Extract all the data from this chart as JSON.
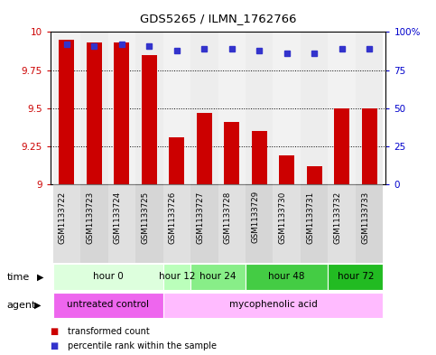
{
  "title": "GDS5265 / ILMN_1762766",
  "samples": [
    "GSM1133722",
    "GSM1133723",
    "GSM1133724",
    "GSM1133725",
    "GSM1133726",
    "GSM1133727",
    "GSM1133728",
    "GSM1133729",
    "GSM1133730",
    "GSM1133731",
    "GSM1133732",
    "GSM1133733"
  ],
  "bar_values": [
    9.95,
    9.93,
    9.93,
    9.85,
    9.31,
    9.47,
    9.41,
    9.35,
    9.19,
    9.12,
    9.5,
    9.5
  ],
  "dot_values": [
    92,
    91,
    92,
    91,
    88,
    89,
    89,
    88,
    86,
    86,
    89,
    89
  ],
  "bar_color": "#cc0000",
  "dot_color": "#3333cc",
  "ylim_left": [
    9.0,
    10.0
  ],
  "ylim_right": [
    0,
    100
  ],
  "yticks_left": [
    9.0,
    9.25,
    9.5,
    9.75,
    10.0
  ],
  "yticks_right": [
    0,
    25,
    50,
    75,
    100
  ],
  "ytick_labels_left": [
    "9",
    "9.25",
    "9.5",
    "9.75",
    "10"
  ],
  "ytick_labels_right": [
    "0",
    "25",
    "50",
    "75",
    "100%"
  ],
  "time_groups": [
    {
      "label": "hour 0",
      "start": 0,
      "end": 3,
      "color": "#ddffdd"
    },
    {
      "label": "hour 12",
      "start": 4,
      "end": 4,
      "color": "#bbffbb"
    },
    {
      "label": "hour 24",
      "start": 5,
      "end": 6,
      "color": "#88ee88"
    },
    {
      "label": "hour 48",
      "start": 7,
      "end": 9,
      "color": "#44cc44"
    },
    {
      "label": "hour 72",
      "start": 10,
      "end": 11,
      "color": "#22bb22"
    }
  ],
  "agent_groups": [
    {
      "label": "untreated control",
      "start": 0,
      "end": 3,
      "color": "#ee66ee"
    },
    {
      "label": "mycophenolic acid",
      "start": 4,
      "end": 11,
      "color": "#ffbbff"
    }
  ],
  "legend_items": [
    {
      "label": "transformed count",
      "color": "#cc0000"
    },
    {
      "label": "percentile rank within the sample",
      "color": "#3333cc"
    }
  ],
  "time_label": "time",
  "agent_label": "agent",
  "col_colors": [
    "#cccccc",
    "#bbbbbb"
  ]
}
